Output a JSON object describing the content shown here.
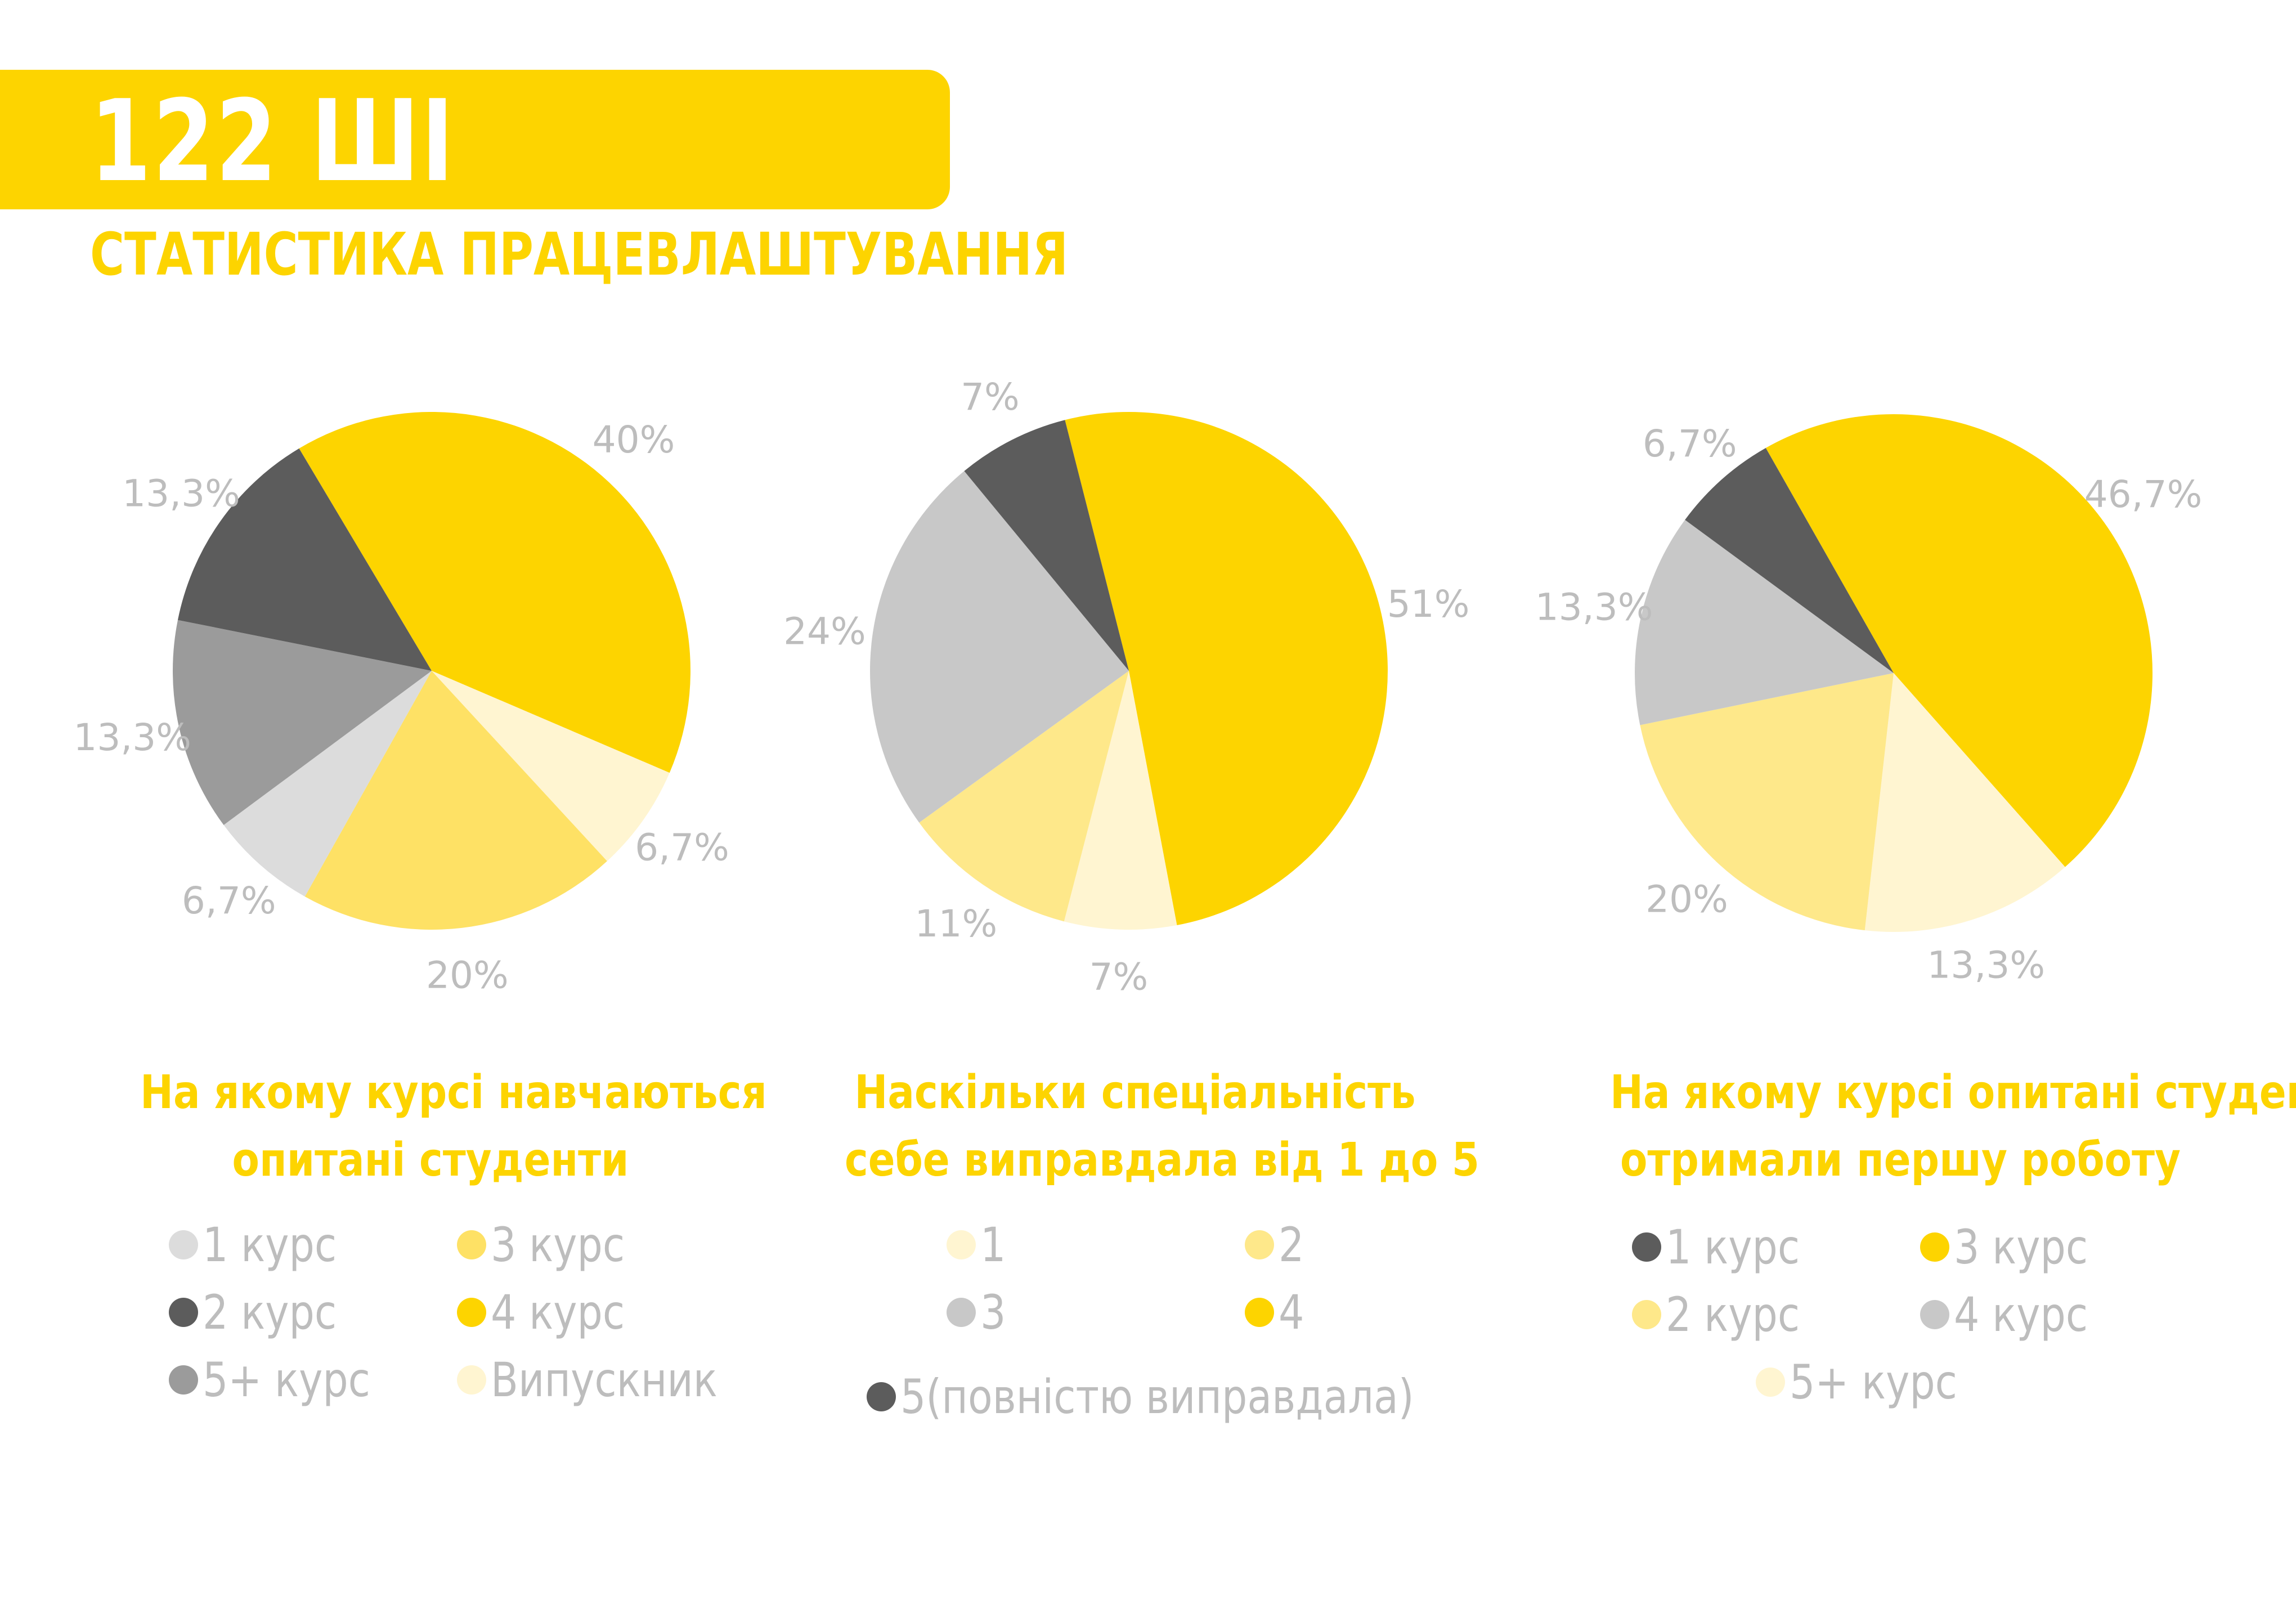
{
  "header": {
    "title": "122 ШІ",
    "subtitle": "СТАТИСТИКА ПРАЦЕВЛАШТУВАННЯ"
  },
  "colors": {
    "brand_yellow": "#fdd400",
    "label_gray": "#bdbdbd"
  },
  "chart_data": [
    {
      "type": "pie",
      "title_lines": [
        "На якому курсі навчаються",
        "опитані студенти"
      ],
      "slices": [
        {
          "label": "4 курс",
          "value": 40,
          "display": "40%",
          "color": "#fdd400"
        },
        {
          "label": "Випускник",
          "value": 6.7,
          "display": "6,7%",
          "color": "#fff5d1"
        },
        {
          "label": "3 курс",
          "value": 20,
          "display": "20%",
          "color": "#fee165"
        },
        {
          "label": "1 курс",
          "value": 6.7,
          "display": "6,7%",
          "color": "#dcdcdc"
        },
        {
          "label": "5+ курс",
          "value": 13.3,
          "display": "13,3%",
          "color": "#9b9b9b"
        },
        {
          "label": "2 курс",
          "value": 13.3,
          "display": "13,3%",
          "color": "#5c5c5c"
        }
      ],
      "legend": [
        {
          "label": "1 курс",
          "color": "#dcdcdc"
        },
        {
          "label": "3 курс",
          "color": "#fee165"
        },
        {
          "label": "2 курс",
          "color": "#5c5c5c"
        },
        {
          "label": "4 курс",
          "color": "#fdd400"
        },
        {
          "label": "5+ курс",
          "color": "#9b9b9b"
        },
        {
          "label": "Випускник",
          "color": "#fff5d1"
        }
      ]
    },
    {
      "type": "pie",
      "title_lines": [
        "Наскільки спеціальність",
        "себе виправдала від 1 до 5"
      ],
      "slices": [
        {
          "label": "4",
          "value": 51,
          "display": "51%",
          "color": "#fdd400"
        },
        {
          "label": "1",
          "value": 7,
          "display": "7%",
          "color": "#fff5d1"
        },
        {
          "label": "2",
          "value": 11,
          "display": "11%",
          "color": "#fee88a"
        },
        {
          "label": "3",
          "value": 24,
          "display": "24%",
          "color": "#c8c8c8"
        },
        {
          "label": "5(повністю виправдала)",
          "value": 7,
          "display": "7%",
          "color": "#5c5c5c"
        }
      ],
      "legend": [
        {
          "label": "1",
          "color": "#fff5d1"
        },
        {
          "label": "2",
          "color": "#fee88a"
        },
        {
          "label": "3",
          "color": "#c8c8c8"
        },
        {
          "label": "4",
          "color": "#fdd400"
        },
        {
          "label": "5(повністю виправдала)",
          "color": "#5c5c5c"
        }
      ]
    },
    {
      "type": "pie",
      "title_lines": [
        "На якому курсі опитані студенти",
        "отримали першу роботу"
      ],
      "slices": [
        {
          "label": "3 курс",
          "value": 46.7,
          "display": "46,7%",
          "color": "#fdd400"
        },
        {
          "label": "5+ курс",
          "value": 13.3,
          "display": "13,3%",
          "color": "#fff5d1"
        },
        {
          "label": "2 курс",
          "value": 20,
          "display": "20%",
          "color": "#fee88a"
        },
        {
          "label": "4 курс",
          "value": 13.3,
          "display": "13,3%",
          "color": "#c8c8c8"
        },
        {
          "label": "1 курс",
          "value": 6.7,
          "display": "6,7%",
          "color": "#5c5c5c"
        }
      ],
      "legend": [
        {
          "label": "1 курс",
          "color": "#5c5c5c"
        },
        {
          "label": "3 курс",
          "color": "#fdd400"
        },
        {
          "label": "2 курс",
          "color": "#fee88a"
        },
        {
          "label": "4 курс",
          "color": "#c8c8c8"
        },
        {
          "label": "5+ курс",
          "color": "#fff5d1"
        }
      ]
    }
  ]
}
